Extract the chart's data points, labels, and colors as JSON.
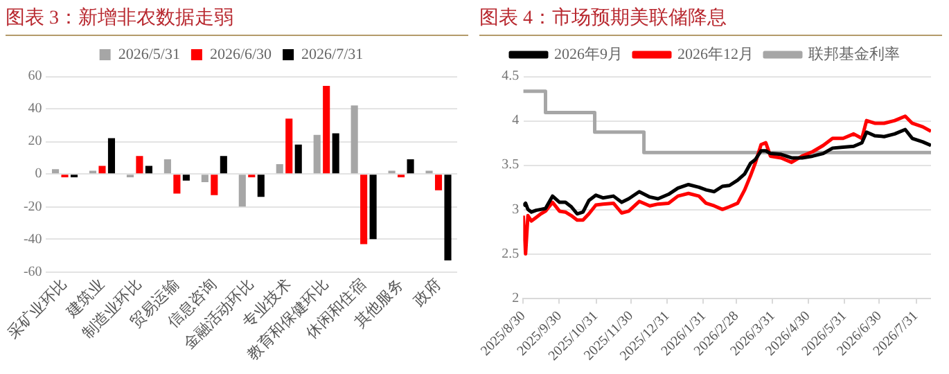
{
  "chart_data": [
    {
      "type": "bar",
      "title": "图表 3：新增非农数据走弱",
      "legend": "top",
      "grid": "y",
      "categories": [
        "采矿业环比",
        "建筑业",
        "制造业环比",
        "贸易运输",
        "信息咨询",
        "金融活动环比",
        "专业技术",
        "教育和保健环比",
        "休闲和住宿",
        "其他服务",
        "政府"
      ],
      "ylim": [
        -60,
        60
      ],
      "yticks": [
        -60,
        -40,
        -20,
        0,
        20,
        40,
        60
      ],
      "series": [
        {
          "name": "2026/5/31",
          "color": "#a6a6a6",
          "values": [
            3,
            2,
            -2,
            9,
            -5,
            -20,
            6,
            24,
            42,
            2,
            2
          ]
        },
        {
          "name": "2026/6/30",
          "color": "#ff0000",
          "values": [
            -2,
            5,
            11,
            -12,
            -13,
            -2,
            34,
            54,
            -43,
            -2,
            -10
          ]
        },
        {
          "name": "2026/7/31",
          "color": "#000000",
          "values": [
            -2,
            22,
            5,
            -4,
            11,
            -14,
            18,
            25,
            -40,
            9,
            -53
          ]
        }
      ]
    },
    {
      "type": "line",
      "title": "图表 4：市场预期美联储降息",
      "legend": "top",
      "grid": "y",
      "marker": "none",
      "x": [
        "2025-08-30",
        "2025-09-01",
        "2025-09-03",
        "2025-09-06",
        "2025-09-10",
        "2025-09-14",
        "2025-09-18",
        "2025-09-24",
        "2025-09-30",
        "2025-10-05",
        "2025-10-10",
        "2025-10-15",
        "2025-10-20",
        "2025-10-25",
        "2025-10-31",
        "2025-11-06",
        "2025-11-15",
        "2025-11-22",
        "2025-11-28",
        "2025-12-07",
        "2025-12-16",
        "2025-12-23",
        "2026-01-01",
        "2026-01-09",
        "2026-01-18",
        "2026-01-27",
        "2026-02-02",
        "2026-02-09",
        "2026-02-16",
        "2026-02-22",
        "2026-03-01",
        "2026-03-07",
        "2026-03-12",
        "2026-03-16",
        "2026-03-21",
        "2026-03-25",
        "2026-03-29",
        "2026-04-07",
        "2026-04-16",
        "2026-04-25",
        "2026-05-04",
        "2026-05-13",
        "2026-05-21",
        "2026-05-30",
        "2026-06-08",
        "2026-06-15",
        "2026-06-19",
        "2026-06-26",
        "2026-07-04",
        "2026-07-13",
        "2026-07-22",
        "2026-07-28",
        "2026-08-06",
        "2026-08-13"
      ],
      "xlim": [
        "2025-08-30",
        "2026-08-13"
      ],
      "xticks": [
        {
          "value": "2025-08-30",
          "label": "2025/8/30"
        },
        {
          "value": "2025-09-30",
          "label": "2025/9/30"
        },
        {
          "value": "2025-10-31",
          "label": "2025/10/31"
        },
        {
          "value": "2025-11-30",
          "label": "2025/11/30"
        },
        {
          "value": "2025-12-31",
          "label": "2025/12/31"
        },
        {
          "value": "2026-01-31",
          "label": "2026/1/31"
        },
        {
          "value": "2026-02-28",
          "label": "2026/2/28"
        },
        {
          "value": "2026-03-31",
          "label": "2026/3/31"
        },
        {
          "value": "2026-04-30",
          "label": "2026/4/30"
        },
        {
          "value": "2026-05-31",
          "label": "2026/5/31"
        },
        {
          "value": "2026-06-30",
          "label": "2026/6/30"
        },
        {
          "value": "2026-07-31",
          "label": "2026/7/31"
        }
      ],
      "ylim": [
        2,
        4.5
      ],
      "yticks": [
        2,
        2.5,
        3,
        3.5,
        4,
        4.5
      ],
      "series": [
        {
          "name": "2026年9月",
          "color": "#000000",
          "values": [
            3.04,
            3.07,
            3.0,
            2.97,
            2.99,
            3.0,
            3.01,
            3.15,
            3.08,
            3.08,
            3.03,
            2.95,
            2.97,
            3.1,
            3.16,
            3.13,
            3.15,
            3.08,
            3.12,
            3.2,
            3.14,
            3.12,
            3.17,
            3.24,
            3.28,
            3.25,
            3.22,
            3.2,
            3.26,
            3.27,
            3.33,
            3.4,
            3.52,
            3.56,
            3.66,
            3.66,
            3.63,
            3.62,
            3.58,
            3.58,
            3.6,
            3.63,
            3.69,
            3.7,
            3.71,
            3.75,
            3.87,
            3.83,
            3.82,
            3.85,
            3.9,
            3.8,
            3.76,
            3.72
          ]
        },
        {
          "name": "2026年12月",
          "color": "#ff0000",
          "values": [
            2.93,
            2.5,
            2.93,
            2.87,
            2.91,
            2.95,
            2.98,
            3.08,
            2.98,
            2.97,
            2.93,
            2.88,
            2.88,
            2.95,
            3.05,
            3.06,
            3.07,
            2.96,
            2.98,
            3.09,
            3.04,
            3.06,
            3.07,
            3.15,
            3.18,
            3.15,
            3.07,
            3.04,
            3.0,
            3.03,
            3.07,
            3.22,
            3.38,
            3.52,
            3.73,
            3.75,
            3.6,
            3.58,
            3.53,
            3.6,
            3.65,
            3.72,
            3.8,
            3.8,
            3.85,
            3.8,
            4.0,
            3.97,
            3.97,
            4.0,
            4.05,
            3.97,
            3.93,
            3.88
          ]
        },
        {
          "name": "联邦基金利率",
          "type": "step",
          "color": "#a6a6a6",
          "x": [
            "2025-08-30",
            "2025-09-18",
            "2025-10-30",
            "2025-12-11",
            "2026-08-13"
          ],
          "values": [
            4.33,
            4.09,
            3.87,
            3.64,
            3.64
          ]
        }
      ]
    }
  ]
}
